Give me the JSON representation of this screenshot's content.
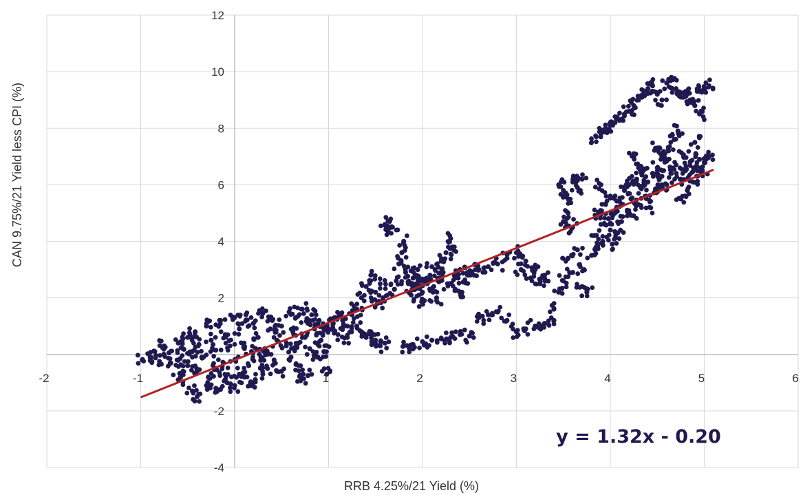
{
  "chart_data": {
    "type": "scatter",
    "xlabel": "RRB 4.25%/21 Yield (%)",
    "ylabel": "CAN 9.75%/21  Yield less CPI (%)",
    "xlim": [
      -2,
      6
    ],
    "ylim": [
      -4,
      12
    ],
    "x_ticks": [
      -2,
      -1,
      1,
      2,
      3,
      4,
      5,
      6
    ],
    "y_ticks": [
      -4,
      -2,
      2,
      4,
      6,
      8,
      10,
      12
    ],
    "x_tick_labels": [
      "-2",
      "-1",
      "1",
      "2",
      "3",
      "4",
      "5",
      "6"
    ],
    "y_tick_labels": [
      "-4",
      "-2",
      "2",
      "4",
      "6",
      "8",
      "10",
      "12"
    ],
    "grid": true,
    "colors": {
      "points": "#1f1a4f",
      "trendline": "#b22222",
      "grid": "#d9d9d9",
      "axis": "#bfbfbf"
    },
    "trendline": {
      "slope": 1.32,
      "intercept": -0.2,
      "x_range": [
        -1,
        5.1
      ],
      "label": "y = 1.32x - 0.20"
    },
    "series": [
      {
        "points": [
          [
            -0.98,
            -0.2
          ],
          [
            -0.9,
            -0.1
          ],
          [
            -0.85,
            0.1
          ],
          [
            -0.8,
            -0.25
          ],
          [
            -0.75,
            0.3
          ],
          [
            -0.7,
            0.05
          ],
          [
            -0.68,
            -0.3
          ],
          [
            -0.6,
            0.4
          ],
          [
            -0.58,
            -0.15
          ],
          [
            -0.55,
            0.2
          ],
          [
            -0.5,
            0.6
          ],
          [
            -0.5,
            -0.4
          ],
          [
            -0.45,
            0.1
          ],
          [
            -0.42,
            0.8
          ],
          [
            -0.4,
            -0.6
          ],
          [
            -0.38,
            0.35
          ],
          [
            -0.35,
            -0.1
          ],
          [
            -0.3,
            1.0
          ],
          [
            -0.28,
            -0.8
          ],
          [
            -0.25,
            0.5
          ],
          [
            -0.2,
            0.15
          ],
          [
            -0.2,
            -0.5
          ],
          [
            -0.15,
            1.2
          ],
          [
            -0.12,
            -0.3
          ],
          [
            -0.1,
            0.7
          ],
          [
            -0.08,
            -1.0
          ],
          [
            -0.05,
            0.3
          ],
          [
            0.0,
            1.3
          ],
          [
            0.0,
            -0.2
          ],
          [
            0.05,
            0.9
          ],
          [
            0.05,
            -0.7
          ],
          [
            0.1,
            0.4
          ],
          [
            0.12,
            1.4
          ],
          [
            0.15,
            -0.4
          ],
          [
            0.18,
            0.1
          ],
          [
            0.2,
            1.1
          ],
          [
            0.22,
            -0.9
          ],
          [
            0.25,
            0.6
          ],
          [
            0.28,
            -0.1
          ],
          [
            0.3,
            1.45
          ],
          [
            0.32,
            0.2
          ],
          [
            0.35,
            -0.5
          ],
          [
            0.38,
            0.9
          ],
          [
            0.4,
            1.2
          ],
          [
            0.42,
            -0.2
          ],
          [
            0.45,
            0.5
          ],
          [
            0.5,
            1.0
          ],
          [
            0.5,
            -0.6
          ],
          [
            0.55,
            0.3
          ],
          [
            0.58,
            1.5
          ],
          [
            0.6,
            -0.1
          ],
          [
            0.62,
            0.8
          ],
          [
            0.65,
            1.3
          ],
          [
            0.68,
            0.4
          ],
          [
            0.7,
            -0.4
          ],
          [
            0.72,
            1.6
          ],
          [
            0.75,
            0.6
          ],
          [
            0.78,
            1.1
          ],
          [
            0.8,
            0.2
          ],
          [
            0.82,
            1.4
          ],
          [
            0.85,
            0.9
          ],
          [
            0.88,
            -0.1
          ],
          [
            0.9,
            1.2
          ],
          [
            0.92,
            0.5
          ],
          [
            0.95,
            0.9
          ],
          [
            0.98,
            -0.7
          ],
          [
            -0.45,
            -1.3
          ],
          [
            -0.4,
            -1.5
          ],
          [
            -0.3,
            -1.1
          ],
          [
            -0.2,
            -1.2
          ],
          [
            -0.1,
            -0.9
          ],
          [
            0.0,
            -1.1
          ],
          [
            0.1,
            -0.8
          ],
          [
            0.2,
            -1.0
          ],
          [
            0.3,
            -0.7
          ],
          [
            -0.6,
            -0.9
          ],
          [
            -0.55,
            -0.6
          ],
          [
            0.7,
            -0.8
          ],
          [
            0.78,
            -0.75
          ],
          [
            0.95,
            0.1
          ],
          [
            1.0,
            0.9
          ],
          [
            1.05,
            1.1
          ],
          [
            1.1,
            1.3
          ],
          [
            1.15,
            1.2
          ],
          [
            1.2,
            1.0
          ],
          [
            1.25,
            1.4
          ],
          [
            1.3,
            1.6
          ],
          [
            1.35,
            2.0
          ],
          [
            1.4,
            2.4
          ],
          [
            1.45,
            2.8
          ],
          [
            1.5,
            2.2
          ],
          [
            1.52,
            1.8
          ],
          [
            1.55,
            2.5
          ],
          [
            1.58,
            2.0
          ],
          [
            1.6,
            4.6
          ],
          [
            1.62,
            4.4
          ],
          [
            1.65,
            4.7
          ],
          [
            1.68,
            4.5
          ],
          [
            1.7,
            2.3
          ],
          [
            1.72,
            2.6
          ],
          [
            1.75,
            3.2
          ],
          [
            1.78,
            3.6
          ],
          [
            1.8,
            4.0
          ],
          [
            1.82,
            2.9
          ],
          [
            1.85,
            2.5
          ],
          [
            1.88,
            2.1
          ],
          [
            1.9,
            2.7
          ],
          [
            1.92,
            2.3
          ],
          [
            1.95,
            3.0
          ],
          [
            1.98,
            2.6
          ],
          [
            2.0,
            2.2
          ],
          [
            2.02,
            1.9
          ],
          [
            2.05,
            2.5
          ],
          [
            2.08,
            2.8
          ],
          [
            2.1,
            3.1
          ],
          [
            2.12,
            2.4
          ],
          [
            2.15,
            2.0
          ],
          [
            2.18,
            2.7
          ],
          [
            2.2,
            3.3
          ],
          [
            2.22,
            2.9
          ],
          [
            2.25,
            3.6
          ],
          [
            2.28,
            2.5
          ],
          [
            2.3,
            4.1
          ],
          [
            2.32,
            3.8
          ],
          [
            2.35,
            2.3
          ],
          [
            2.38,
            2.7
          ],
          [
            2.4,
            3.0
          ],
          [
            2.42,
            2.2
          ],
          [
            2.45,
            2.6
          ],
          [
            2.48,
            2.9
          ],
          [
            1.4,
            0.6
          ],
          [
            1.45,
            0.8
          ],
          [
            1.5,
            0.5
          ],
          [
            1.55,
            0.3
          ],
          [
            1.6,
            0.4
          ],
          [
            1.8,
            0.3
          ],
          [
            1.9,
            0.35
          ],
          [
            2.0,
            0.45
          ],
          [
            2.1,
            0.5
          ],
          [
            2.2,
            0.55
          ],
          [
            2.3,
            0.6
          ],
          [
            2.4,
            0.7
          ],
          [
            2.5,
            0.65
          ],
          [
            1.3,
            1.0
          ],
          [
            1.35,
            0.8
          ],
          [
            1.1,
            0.7
          ],
          [
            1.2,
            0.6
          ],
          [
            2.6,
            1.3
          ],
          [
            2.7,
            1.4
          ],
          [
            2.8,
            1.5
          ],
          [
            2.9,
            1.2
          ],
          [
            2.55,
            2.8
          ],
          [
            2.6,
            3.0
          ],
          [
            2.7,
            3.1
          ],
          [
            2.8,
            3.2
          ],
          [
            2.9,
            3.4
          ],
          [
            3.0,
            3.6
          ],
          [
            3.05,
            3.0
          ],
          [
            3.1,
            3.3
          ],
          [
            3.15,
            2.7
          ],
          [
            3.2,
            3.0
          ],
          [
            3.25,
            2.5
          ],
          [
            3.3,
            2.8
          ],
          [
            3.0,
            0.8
          ],
          [
            3.1,
            0.9
          ],
          [
            3.2,
            1.0
          ],
          [
            3.3,
            1.1
          ],
          [
            3.4,
            1.2
          ],
          [
            3.4,
            1.6
          ],
          [
            3.45,
            2.2
          ],
          [
            3.5,
            2.6
          ],
          [
            3.55,
            3.4
          ],
          [
            3.6,
            2.9
          ],
          [
            3.65,
            3.7
          ],
          [
            3.7,
            2.4
          ],
          [
            3.72,
            3.0
          ],
          [
            3.5,
            4.7
          ],
          [
            3.55,
            5.0
          ],
          [
            3.6,
            4.5
          ],
          [
            3.65,
            5.9
          ],
          [
            3.45,
            6.0
          ],
          [
            3.5,
            5.8
          ],
          [
            3.55,
            5.5
          ],
          [
            3.75,
            2.2
          ],
          [
            3.8,
            3.5
          ],
          [
            3.82,
            4.2
          ],
          [
            3.85,
            3.8
          ],
          [
            3.88,
            5.0
          ],
          [
            3.9,
            4.6
          ],
          [
            3.92,
            4.0
          ],
          [
            3.95,
            5.3
          ],
          [
            3.98,
            4.8
          ],
          [
            4.0,
            4.4
          ],
          [
            4.0,
            5.6
          ],
          [
            4.02,
            3.9
          ],
          [
            4.05,
            5.0
          ],
          [
            4.08,
            4.3
          ],
          [
            4.1,
            5.4
          ],
          [
            4.12,
            4.7
          ],
          [
            4.15,
            5.8
          ],
          [
            4.18,
            5.1
          ],
          [
            4.2,
            6.0
          ],
          [
            4.22,
            5.5
          ],
          [
            4.25,
            4.9
          ],
          [
            4.28,
            6.2
          ],
          [
            4.3,
            5.3
          ],
          [
            4.32,
            5.9
          ],
          [
            4.35,
            6.5
          ],
          [
            4.38,
            5.6
          ],
          [
            4.4,
            6.1
          ],
          [
            4.42,
            5.2
          ],
          [
            4.45,
            6.4
          ],
          [
            4.48,
            5.8
          ],
          [
            4.5,
            6.6
          ],
          [
            4.52,
            5.9
          ],
          [
            4.55,
            6.3
          ],
          [
            4.58,
            6.8
          ],
          [
            4.6,
            6.0
          ],
          [
            4.62,
            7.2
          ],
          [
            4.65,
            6.4
          ],
          [
            4.68,
            7.6
          ],
          [
            4.7,
            6.7
          ],
          [
            4.72,
            7.9
          ],
          [
            4.75,
            6.2
          ],
          [
            4.78,
            7.0
          ],
          [
            4.8,
            6.5
          ],
          [
            4.82,
            5.8
          ],
          [
            4.85,
            6.8
          ],
          [
            4.88,
            6.1
          ],
          [
            4.9,
            6.6
          ],
          [
            4.92,
            6.3
          ],
          [
            4.95,
            6.9
          ],
          [
            4.98,
            6.5
          ],
          [
            5.0,
            6.8
          ],
          [
            5.05,
            7.0
          ],
          [
            3.85,
            7.7
          ],
          [
            3.9,
            7.8
          ],
          [
            3.95,
            8.0
          ],
          [
            4.0,
            8.1
          ],
          [
            4.05,
            8.2
          ],
          [
            4.1,
            8.3
          ],
          [
            4.15,
            8.5
          ],
          [
            4.2,
            8.6
          ],
          [
            4.25,
            8.8
          ],
          [
            4.3,
            9.0
          ],
          [
            4.35,
            9.2
          ],
          [
            4.4,
            9.4
          ],
          [
            4.45,
            9.5
          ],
          [
            4.5,
            9.2
          ],
          [
            4.55,
            9.0
          ],
          [
            4.6,
            9.6
          ],
          [
            4.65,
            9.8
          ],
          [
            4.7,
            9.4
          ],
          [
            4.75,
            9.1
          ],
          [
            4.8,
            9.3
          ],
          [
            4.85,
            9.0
          ],
          [
            4.9,
            8.8
          ],
          [
            4.95,
            9.3
          ],
          [
            5.0,
            9.4
          ],
          [
            5.05,
            9.5
          ],
          [
            4.5,
            7.3
          ],
          [
            4.55,
            7.0
          ],
          [
            4.95,
            8.5
          ],
          [
            4.9,
            7.5
          ],
          [
            3.6,
            6.1
          ],
          [
            3.7,
            6.2
          ],
          [
            3.9,
            6.0
          ],
          [
            4.3,
            6.6
          ],
          [
            4.25,
            7.0
          ],
          [
            4.75,
            5.5
          ]
        ]
      }
    ],
    "annotation": "y = 1.32x - 0.20"
  }
}
